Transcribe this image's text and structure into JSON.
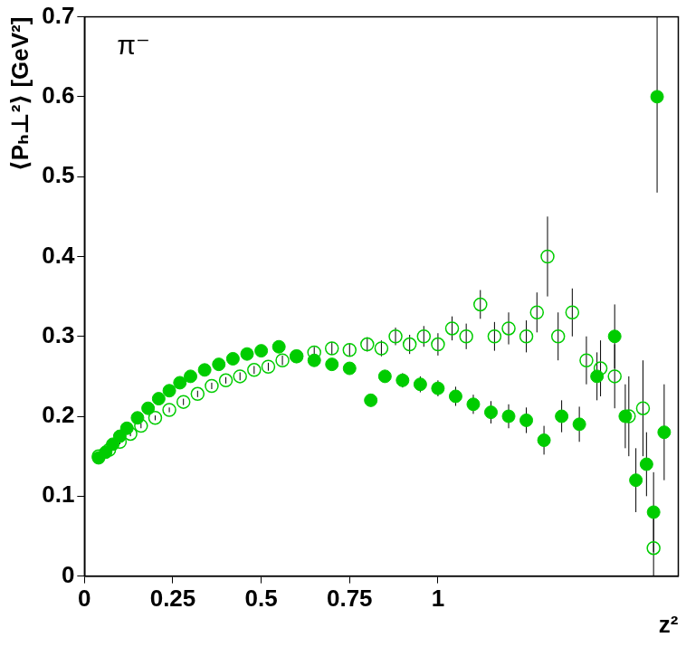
{
  "chart_data": {
    "type": "scatter",
    "x_label": "z²",
    "y_label": "⟨Pₕ⊥²⟩ [GeV²]",
    "annotation": "π⁻",
    "xlim": [
      0,
      1.68
    ],
    "xticks": [
      0,
      0.25,
      0.5,
      0.75,
      1
    ],
    "ylim": [
      0,
      0.7
    ],
    "yticks": [
      0,
      0.1,
      0.2,
      0.3,
      0.4,
      0.5,
      0.6,
      0.7
    ],
    "grid": false,
    "series": [
      {
        "color": "#00cc00",
        "marker": "circle",
        "x": [
          0.04,
          0.06,
          0.08,
          0.1,
          0.12,
          0.15,
          0.18,
          0.21,
          0.24,
          0.27,
          0.3,
          0.34,
          0.38,
          0.42,
          0.46,
          0.5,
          0.55,
          0.6,
          0.65,
          0.7,
          0.75,
          0.81,
          0.85,
          0.9,
          0.95,
          1.0,
          1.05,
          1.1,
          1.15,
          1.2,
          1.25,
          1.3,
          1.35,
          1.4,
          1.45,
          1.5,
          1.53,
          1.56,
          1.59,
          1.61,
          1.62,
          1.64
        ],
        "values": [
          0.148,
          0.155,
          0.165,
          0.175,
          0.185,
          0.198,
          0.21,
          0.222,
          0.232,
          0.242,
          0.25,
          0.258,
          0.265,
          0.272,
          0.278,
          0.282,
          0.287,
          0.275,
          0.27,
          0.265,
          0.26,
          0.22,
          0.25,
          0.245,
          0.24,
          0.235,
          0.225,
          0.215,
          0.205,
          0.2,
          0.195,
          0.17,
          0.2,
          0.19,
          0.25,
          0.3,
          0.2,
          0.12,
          0.14,
          0.08,
          0.6,
          0.18
        ],
        "errors": [
          0.003,
          0.003,
          0.003,
          0.003,
          0.003,
          0.003,
          0.003,
          0.003,
          0.003,
          0.003,
          0.003,
          0.004,
          0.004,
          0.004,
          0.004,
          0.005,
          0.005,
          0.005,
          0.006,
          0.006,
          0.007,
          0.008,
          0.008,
          0.009,
          0.01,
          0.01,
          0.012,
          0.012,
          0.014,
          0.015,
          0.016,
          0.018,
          0.02,
          0.022,
          0.03,
          0.04,
          0.04,
          0.04,
          0.04,
          0.05,
          0.12,
          0.06
        ]
      },
      {
        "color": "#00cc00",
        "marker": "circle_open",
        "x": [
          0.04,
          0.07,
          0.1,
          0.13,
          0.16,
          0.2,
          0.24,
          0.28,
          0.32,
          0.36,
          0.4,
          0.44,
          0.48,
          0.52,
          0.56,
          0.6,
          0.65,
          0.7,
          0.75,
          0.8,
          0.84,
          0.88,
          0.92,
          0.96,
          1.0,
          1.04,
          1.08,
          1.12,
          1.16,
          1.2,
          1.25,
          1.28,
          1.31,
          1.34,
          1.38,
          1.42,
          1.46,
          1.5,
          1.54,
          1.58,
          1.61
        ],
        "values": [
          0.15,
          0.158,
          0.168,
          0.178,
          0.188,
          0.198,
          0.208,
          0.218,
          0.228,
          0.238,
          0.245,
          0.25,
          0.258,
          0.262,
          0.27,
          0.275,
          0.28,
          0.285,
          0.283,
          0.29,
          0.285,
          0.3,
          0.29,
          0.3,
          0.29,
          0.31,
          0.3,
          0.34,
          0.3,
          0.31,
          0.3,
          0.33,
          0.4,
          0.3,
          0.33,
          0.27,
          0.26,
          0.25,
          0.2,
          0.21,
          0.035
        ],
        "errors": [
          0.003,
          0.003,
          0.003,
          0.003,
          0.003,
          0.003,
          0.003,
          0.004,
          0.004,
          0.004,
          0.004,
          0.005,
          0.005,
          0.005,
          0.006,
          0.006,
          0.007,
          0.008,
          0.008,
          0.009,
          0.01,
          0.011,
          0.012,
          0.013,
          0.014,
          0.015,
          0.016,
          0.018,
          0.018,
          0.02,
          0.02,
          0.025,
          0.05,
          0.03,
          0.03,
          0.03,
          0.035,
          0.04,
          0.05,
          0.06,
          0.04
        ]
      }
    ]
  }
}
